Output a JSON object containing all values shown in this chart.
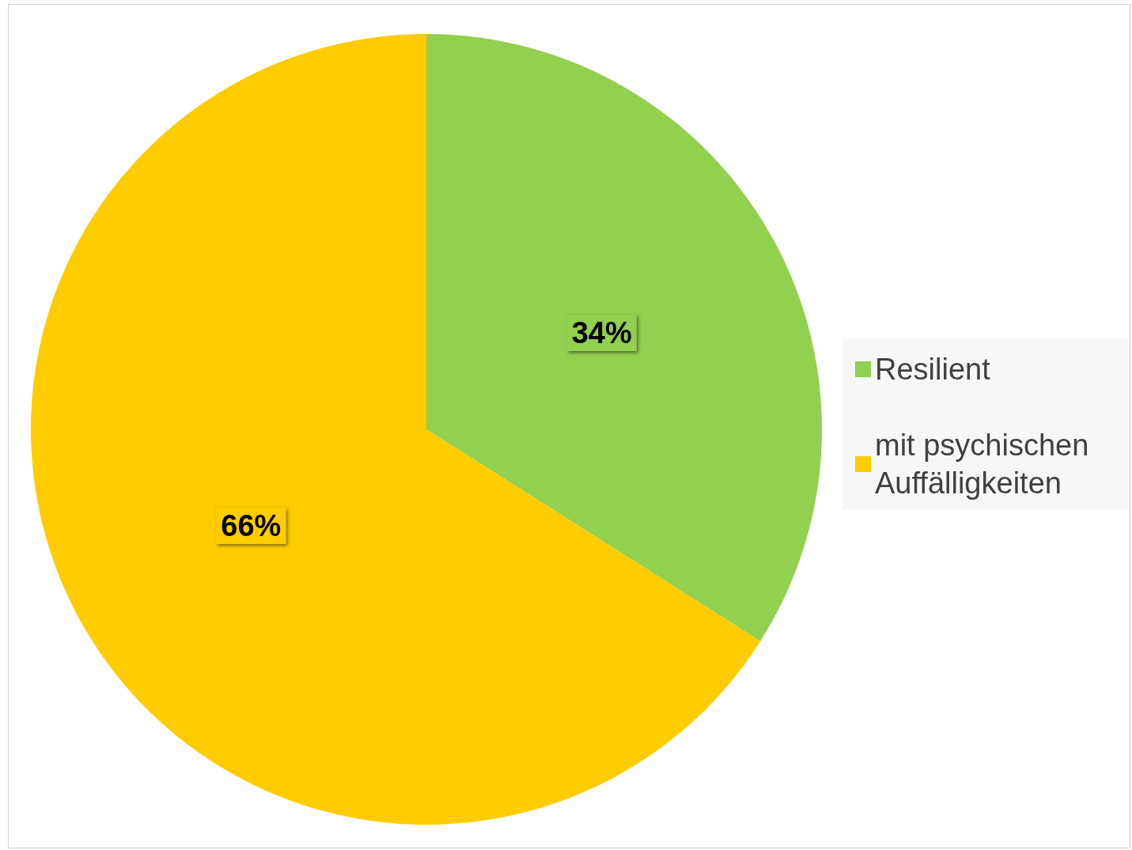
{
  "chart_data": {
    "type": "pie",
    "categories": [
      "Resilient",
      "mit psychischen Auffälligkeiten"
    ],
    "values": [
      34,
      66
    ],
    "colors": [
      "#92d050",
      "#ffcc00"
    ],
    "value_labels": [
      "34%",
      "66%"
    ],
    "legend": "right"
  }
}
